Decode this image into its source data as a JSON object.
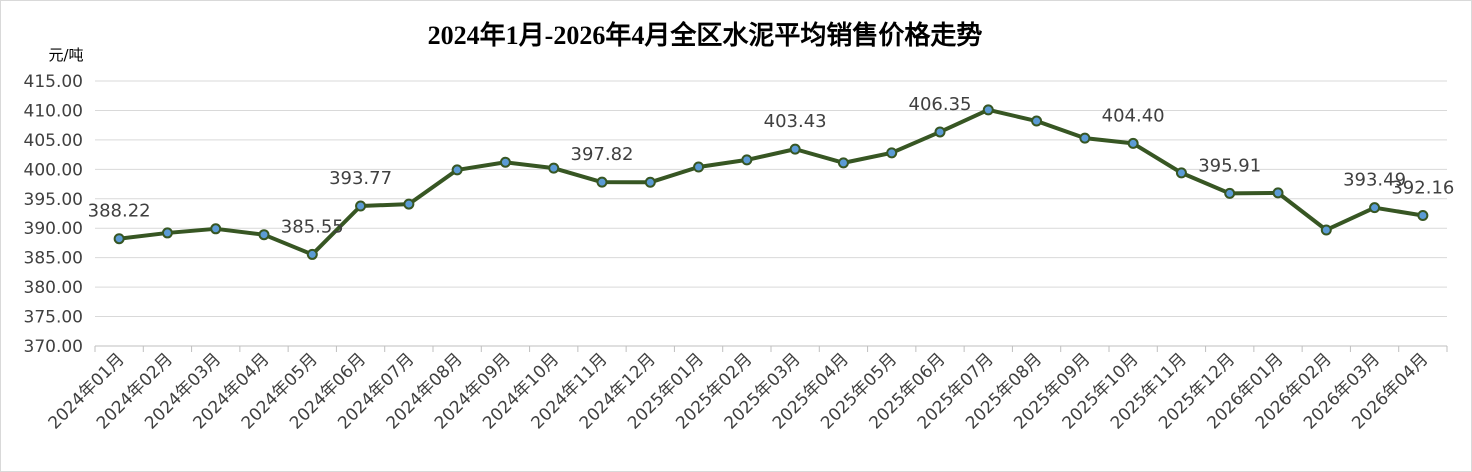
{
  "chart_data": {
    "type": "line",
    "title": "2024年1月-2026年4月全区水泥平均销售价格走势",
    "y_unit": "元/吨",
    "categories": [
      "2024年01月",
      "2024年02月",
      "2024年03月",
      "2024年04月",
      "2024年05月",
      "2024年06月",
      "2024年07月",
      "2024年08月",
      "2024年09月",
      "2024年10月",
      "2024年11月",
      "2024年12月",
      "2025年01月",
      "2025年02月",
      "2025年03月",
      "2025年04月",
      "2025年05月",
      "2025年06月",
      "2025年07月",
      "2025年08月",
      "2025年09月",
      "2025年10月",
      "2025年11月",
      "2025年12月",
      "2026年01月",
      "2026年02月",
      "2026年03月",
      "2026年04月"
    ],
    "series": [
      {
        "name": "全区水泥平均销售价格",
        "color": "#375623",
        "values": [
          388.22,
          389.2,
          389.9,
          388.9,
          385.55,
          393.77,
          394.1,
          399.9,
          401.2,
          400.2,
          397.82,
          397.8,
          400.4,
          401.6,
          403.43,
          401.1,
          402.8,
          406.35,
          410.1,
          408.2,
          405.3,
          404.4,
          399.4,
          395.91,
          396.0,
          389.7,
          393.49,
          392.16
        ],
        "value_labels": [
          "388.22",
          null,
          null,
          null,
          "385.55",
          "393.77",
          null,
          null,
          null,
          null,
          "397.82",
          null,
          null,
          null,
          "403.43",
          null,
          null,
          "406.35",
          null,
          null,
          null,
          "404.40",
          null,
          "395.91",
          null,
          null,
          "393.49",
          "392.16"
        ]
      }
    ],
    "ylim": [
      370,
      415
    ],
    "yticks": [
      {
        "value": 370,
        "label": "370.00"
      },
      {
        "value": 375,
        "label": "375.00"
      },
      {
        "value": 380,
        "label": "380.00"
      },
      {
        "value": 385,
        "label": "385.00"
      },
      {
        "value": 390,
        "label": "390.00"
      },
      {
        "value": 395,
        "label": "395.00"
      },
      {
        "value": 400,
        "label": "400.00"
      },
      {
        "value": 405,
        "label": "405.00"
      },
      {
        "value": 410,
        "label": "410.00"
      },
      {
        "value": 415,
        "label": "415.00"
      }
    ],
    "grid": true,
    "marker_color": "#5b9bd5"
  }
}
